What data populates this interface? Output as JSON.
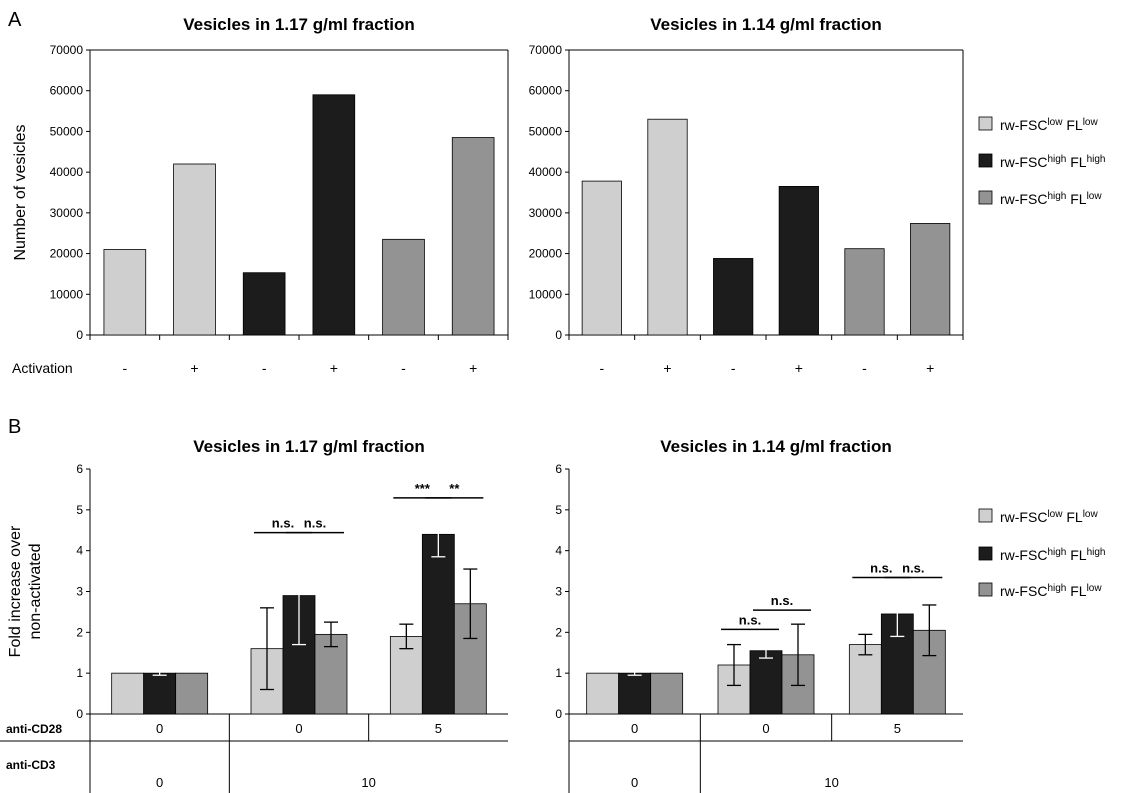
{
  "colors": {
    "series0": "#cfcfcf",
    "series1": "#1c1c1c",
    "series2": "#939393",
    "axis": "#000000"
  },
  "panel_labels": {
    "a": "A",
    "b": "B"
  },
  "legend": [
    {
      "prefix": "rw-FSC",
      "sup1": "low",
      "mid": " FL",
      "sup2": "low",
      "color": "#cfcfcf"
    },
    {
      "prefix": "rw-FSC",
      "sup1": "high",
      "mid": " FL",
      "sup2": "high",
      "color": "#1c1c1c"
    },
    {
      "prefix": "rw-FSC",
      "sup1": "high",
      "mid": " FL",
      "sup2": "low",
      "color": "#939393"
    }
  ],
  "chart_data": [
    {
      "type": "bar",
      "panel": "A",
      "title": "Vesicles in 1.17 g/ml fraction",
      "ylabel": "Number of vesicles",
      "xlabel": "Activation",
      "categories": [
        "-",
        "+",
        "-",
        "+",
        "-",
        "+"
      ],
      "values": [
        21000,
        42000,
        15300,
        59000,
        23500,
        48500
      ],
      "series_index": [
        0,
        0,
        1,
        1,
        2,
        2
      ],
      "ylim": [
        0,
        70000
      ],
      "yticks": [
        "0",
        "10000",
        "20000",
        "30000",
        "40000",
        "50000",
        "60000",
        "70000"
      ],
      "grid": false
    },
    {
      "type": "bar",
      "panel": "A",
      "title": "Vesicles in 1.14 g/ml fraction",
      "ylabel": "",
      "xlabel": "",
      "categories": [
        "-",
        "+",
        "-",
        "+",
        "-",
        "+"
      ],
      "values": [
        37800,
        53000,
        18800,
        36500,
        21200,
        27400
      ],
      "series_index": [
        0,
        0,
        1,
        1,
        2,
        2
      ],
      "ylim": [
        0,
        70000
      ],
      "yticks": [
        "0",
        "10000",
        "20000",
        "30000",
        "40000",
        "50000",
        "60000",
        "70000"
      ],
      "grid": false
    },
    {
      "type": "bar",
      "panel": "B",
      "title": "Vesicles in 1.17 g/ml fraction",
      "ylabel": "Fold increase over non-activated",
      "ylabel_lines": [
        "Fold increase over",
        "non-activated"
      ],
      "ylim": [
        0,
        6
      ],
      "yticks": [
        "0",
        "1",
        "2",
        "3",
        "4",
        "5",
        "6"
      ],
      "groups": [
        "0/0",
        "10/0",
        "10/5"
      ],
      "series": [
        {
          "values": [
            1.0,
            1.6,
            1.9
          ],
          "err": [
            0.0,
            1.0,
            0.3
          ]
        },
        {
          "values": [
            1.0,
            2.9,
            4.4
          ],
          "err": [
            0.05,
            1.2,
            0.55
          ]
        },
        {
          "values": [
            1.0,
            1.95,
            2.7
          ],
          "err": [
            0.0,
            0.3,
            0.85
          ]
        }
      ],
      "significance": [
        {
          "group": 1,
          "pair": [
            0,
            1
          ],
          "label": "n.s."
        },
        {
          "group": 1,
          "pair": [
            1,
            2
          ],
          "label": "n.s."
        },
        {
          "group": 2,
          "pair": [
            0,
            1
          ],
          "label": "***"
        },
        {
          "group": 2,
          "pair": [
            1,
            2
          ],
          "label": "**"
        }
      ],
      "table": {
        "rows": [
          {
            "label": "anti-CD28",
            "cells": [
              "0",
              "0",
              "5"
            ]
          },
          {
            "label": "anti-CD3",
            "cells": [
              "0",
              "10"
            ]
          }
        ]
      },
      "grid": false
    },
    {
      "type": "bar",
      "panel": "B",
      "title": "Vesicles in 1.14 g/ml fraction",
      "ylabel": "",
      "ylim": [
        0,
        6
      ],
      "yticks": [
        "0",
        "1",
        "2",
        "3",
        "4",
        "5",
        "6"
      ],
      "groups": [
        "0/0",
        "10/0",
        "10/5"
      ],
      "series": [
        {
          "values": [
            1.0,
            1.2,
            1.7
          ],
          "err": [
            0.0,
            0.5,
            0.25
          ]
        },
        {
          "values": [
            1.0,
            1.55,
            2.45
          ],
          "err": [
            0.05,
            0.18,
            0.55
          ]
        },
        {
          "values": [
            1.0,
            1.45,
            2.05
          ],
          "err": [
            0.0,
            0.75,
            0.62
          ]
        }
      ],
      "significance": [
        {
          "group": 1,
          "pair": [
            0,
            1
          ],
          "label": "n.s."
        },
        {
          "group": 1,
          "pair": [
            1,
            2
          ],
          "label": "n.s."
        },
        {
          "group": 2,
          "pair": [
            0,
            1
          ],
          "label": "n.s."
        },
        {
          "group": 2,
          "pair": [
            1,
            2
          ],
          "label": "n.s."
        }
      ],
      "table": {
        "rows": [
          {
            "label": "",
            "cells": [
              "0",
              "0",
              "5"
            ]
          },
          {
            "label": "",
            "cells": [
              "0",
              "10"
            ]
          }
        ]
      },
      "grid": false
    }
  ]
}
